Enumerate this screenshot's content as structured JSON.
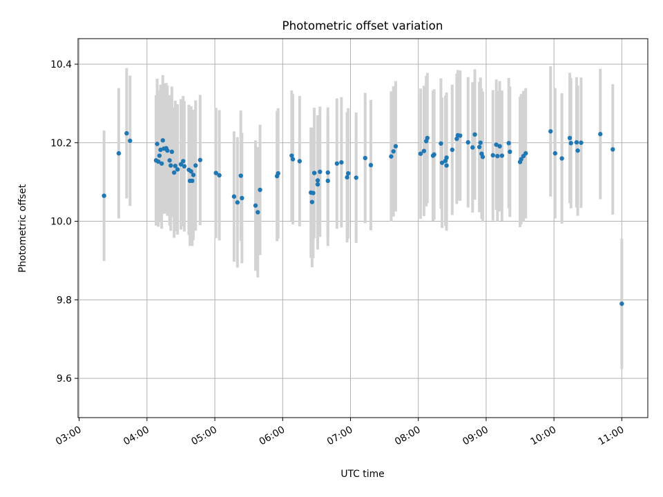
{
  "chart_data": {
    "type": "scatter",
    "title": "Photometric offset variation",
    "xlabel": "UTC time",
    "ylabel": "Photometric offset",
    "xlim": [
      "02:59",
      "11:23"
    ],
    "ylim": [
      9.5,
      10.465
    ],
    "x_tick_labels": [
      "03:00",
      "04:00",
      "05:00",
      "06:00",
      "07:00",
      "08:00",
      "09:00",
      "10:00",
      "11:00"
    ],
    "y_tick_labels": [
      "9.6",
      "9.8",
      "10.0",
      "10.2",
      "10.4"
    ],
    "grid": true,
    "legend": "none",
    "colors": {
      "point": "#1f77b4",
      "error_bar": "#d3d3d3",
      "grid": "#b0b0b0"
    },
    "error_bar_half_width": 0.166,
    "points": [
      [
        "03:22",
        10.065
      ],
      [
        "03:35",
        10.173
      ],
      [
        "03:42",
        10.224
      ],
      [
        "03:45",
        10.205
      ],
      [
        "04:08",
        10.155
      ],
      [
        "04:09",
        10.197
      ],
      [
        "04:10",
        10.152
      ],
      [
        "04:11",
        10.167
      ],
      [
        "04:12",
        10.182
      ],
      [
        "04:13",
        10.147
      ],
      [
        "04:14",
        10.206
      ],
      [
        "04:15",
        10.185
      ],
      [
        "04:17",
        10.186
      ],
      [
        "04:18",
        10.18
      ],
      [
        "04:20",
        10.155
      ],
      [
        "04:21",
        10.142
      ],
      [
        "04:22",
        10.177
      ],
      [
        "04:24",
        10.124
      ],
      [
        "04:25",
        10.141
      ],
      [
        "04:27",
        10.132
      ],
      [
        "04:30",
        10.145
      ],
      [
        "04:32",
        10.153
      ],
      [
        "04:33",
        10.14
      ],
      [
        "04:37",
        10.131
      ],
      [
        "04:38",
        10.103
      ],
      [
        "04:39",
        10.127
      ],
      [
        "04:40",
        10.103
      ],
      [
        "04:41",
        10.118
      ],
      [
        "04:43",
        10.142
      ],
      [
        "04:47",
        10.156
      ],
      [
        "05:01",
        10.123
      ],
      [
        "05:04",
        10.117
      ],
      [
        "05:17",
        10.063
      ],
      [
        "05:20",
        10.048
      ],
      [
        "05:23",
        10.116
      ],
      [
        "05:24",
        10.059
      ],
      [
        "05:36",
        10.04
      ],
      [
        "05:38",
        10.023
      ],
      [
        "05:40",
        10.08
      ],
      [
        "05:55",
        10.115
      ],
      [
        "05:56",
        10.122
      ],
      [
        "06:08",
        10.167
      ],
      [
        "06:09",
        10.158
      ],
      [
        "06:15",
        10.153
      ],
      [
        "06:25",
        10.073
      ],
      [
        "06:26",
        10.049
      ],
      [
        "06:27",
        10.072
      ],
      [
        "06:28",
        10.123
      ],
      [
        "06:31",
        10.094
      ],
      [
        "06:31",
        10.104
      ],
      [
        "06:33",
        10.126
      ],
      [
        "06:40",
        10.124
      ],
      [
        "06:40",
        10.103
      ],
      [
        "06:48",
        10.147
      ],
      [
        "06:52",
        10.15
      ],
      [
        "06:57",
        10.112
      ],
      [
        "06:58",
        10.122
      ],
      [
        "07:05",
        10.111
      ],
      [
        "07:13",
        10.161
      ],
      [
        "07:18",
        10.143
      ],
      [
        "07:36",
        10.165
      ],
      [
        "07:38",
        10.178
      ],
      [
        "07:40",
        10.191
      ],
      [
        "08:02",
        10.172
      ],
      [
        "08:05",
        10.179
      ],
      [
        "08:07",
        10.204
      ],
      [
        "08:08",
        10.212
      ],
      [
        "08:13",
        10.167
      ],
      [
        "08:14",
        10.17
      ],
      [
        "08:20",
        10.198
      ],
      [
        "08:21",
        10.149
      ],
      [
        "08:24",
        10.154
      ],
      [
        "08:25",
        10.142
      ],
      [
        "08:25",
        10.162
      ],
      [
        "08:30",
        10.182
      ],
      [
        "08:34",
        10.21
      ],
      [
        "08:35",
        10.219
      ],
      [
        "08:37",
        10.218
      ],
      [
        "08:44",
        10.201
      ],
      [
        "08:48",
        10.188
      ],
      [
        "08:50",
        10.221
      ],
      [
        "08:54",
        10.189
      ],
      [
        "08:55",
        10.2
      ],
      [
        "08:56",
        10.172
      ],
      [
        "08:57",
        10.164
      ],
      [
        "09:06",
        10.168
      ],
      [
        "09:09",
        10.195
      ],
      [
        "09:10",
        10.166
      ],
      [
        "09:12",
        10.191
      ],
      [
        "09:14",
        10.167
      ],
      [
        "09:20",
        10.199
      ],
      [
        "09:21",
        10.177
      ],
      [
        "09:30",
        10.151
      ],
      [
        "09:31",
        10.158
      ],
      [
        "09:33",
        10.166
      ],
      [
        "09:35",
        10.173
      ],
      [
        "09:57",
        10.229
      ],
      [
        "10:01",
        10.173
      ],
      [
        "10:07",
        10.16
      ],
      [
        "10:14",
        10.212
      ],
      [
        "10:15",
        10.199
      ],
      [
        "10:20",
        10.201
      ],
      [
        "10:21",
        10.18
      ],
      [
        "10:24",
        10.2
      ],
      [
        "10:41",
        10.222
      ],
      [
        "10:52",
        10.183
      ],
      [
        "11:00",
        9.79
      ]
    ]
  }
}
